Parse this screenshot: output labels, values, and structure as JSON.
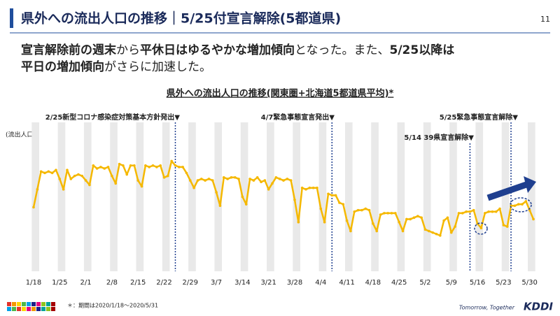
{
  "header": {
    "title": "県外への流出人口の推移｜5/25付宣言解除(5都道県)",
    "page_number": "11"
  },
  "body": {
    "lines": [
      [
        {
          "text": "宣言解除前の週末",
          "bold": true
        },
        {
          "text": "から",
          "bold": false
        },
        {
          "text": "平休日はゆるやかな増加傾向",
          "bold": true
        },
        {
          "text": "となった。また、",
          "bold": false
        },
        {
          "text": "5/25以降は",
          "bold": true
        }
      ],
      [
        {
          "text": "平日の増加傾向",
          "bold": true
        },
        {
          "text": "がさらに加速した。",
          "bold": false
        }
      ]
    ]
  },
  "chart_data": {
    "type": "line",
    "title": "県外への流出人口の推移(関東圏+北海道5都道県平均)*",
    "y_label": "(流出人口)",
    "categories": [
      "1/18",
      null,
      null,
      null,
      null,
      null,
      null,
      "1/25",
      null,
      null,
      null,
      null,
      null,
      null,
      "2/1",
      null,
      null,
      null,
      null,
      null,
      null,
      "2/8",
      null,
      null,
      null,
      null,
      null,
      null,
      "2/15",
      null,
      null,
      null,
      null,
      null,
      null,
      "2/22",
      null,
      null,
      null,
      null,
      null,
      null,
      "2/29",
      null,
      null,
      null,
      null,
      null,
      null,
      "3/7",
      null,
      null,
      null,
      null,
      null,
      null,
      "3/14",
      null,
      null,
      null,
      null,
      null,
      null,
      "3/21",
      null,
      null,
      null,
      null,
      null,
      null,
      "3/28",
      null,
      null,
      null,
      null,
      null,
      null,
      "4/4",
      null,
      null,
      null,
      null,
      null,
      null,
      "4/11",
      null,
      null,
      null,
      null,
      null,
      null,
      "4/18",
      null,
      null,
      null,
      null,
      null,
      null,
      "4/25",
      null,
      null,
      null,
      null,
      null,
      null,
      "5/2",
      null,
      null,
      null,
      null,
      null,
      null,
      "5/9",
      null,
      null,
      null,
      null,
      null,
      null,
      "5/16",
      null,
      null,
      null,
      null,
      null,
      null,
      "5/23",
      null,
      null,
      null,
      null,
      null,
      null,
      "5/30",
      null
    ],
    "series": [
      {
        "color": "#f5b800",
        "values": [
          43,
          55,
          67,
          66,
          67,
          66,
          68,
          62,
          55,
          68,
          62,
          64,
          65,
          64,
          61,
          58,
          71,
          69,
          70,
          69,
          70,
          64,
          59,
          72,
          71,
          65,
          71,
          71,
          61,
          57,
          71,
          70,
          71,
          70,
          71,
          63,
          64,
          74,
          71,
          70,
          70,
          66,
          61,
          56,
          61,
          62,
          61,
          62,
          61,
          53,
          44,
          63,
          62,
          63,
          63,
          62,
          50,
          45,
          62,
          61,
          63,
          60,
          61,
          55,
          59,
          63,
          62,
          61,
          62,
          61,
          48,
          33,
          56,
          55,
          56,
          56,
          56,
          42,
          33,
          52,
          51,
          51,
          46,
          45,
          34,
          27,
          40,
          41,
          41,
          42,
          41,
          32,
          27,
          38,
          39,
          39,
          39,
          39,
          33,
          27,
          35,
          35,
          36,
          37,
          36,
          28,
          27,
          26,
          25,
          24,
          34,
          36,
          26,
          30,
          39,
          39,
          40,
          40,
          41,
          32,
          29,
          39,
          40,
          40,
          40,
          42,
          31,
          30,
          44,
          44,
          45,
          45,
          47,
          41,
          35
        ]
      }
    ],
    "ylim": [
      0,
      100
    ],
    "annotations": [
      "2/25新型コロナ感染症対策基本方針発出▼",
      "4/7緊急事態宣言発出▼",
      "5/25緊急事態宣言解除▼",
      "5/14 39県宣言解除▼"
    ],
    "footnote": "＊：期間は2020/1/18～2020/5/31"
  },
  "logo": {
    "tagline": "Tomorrow, Together",
    "brand": "KDDI"
  }
}
